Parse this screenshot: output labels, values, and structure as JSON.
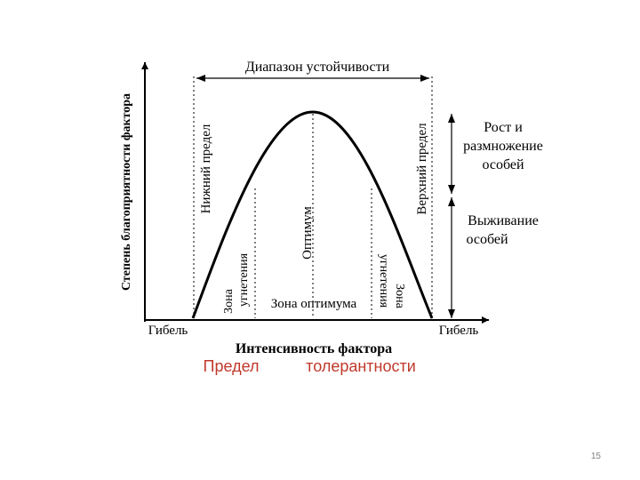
{
  "diagram": {
    "axis_y_label": "Степень благоприятности фактора",
    "axis_x_label": "Интенсивность фактора",
    "range_label": "Диапазон устойчивости",
    "death_left": "Гибель",
    "death_right": "Гибель",
    "lower_limit": "Нижний предел",
    "upper_limit": "Верхний предел",
    "optimum": "Оптимум",
    "zone_optimum": "Зона оптимума",
    "zone_left_line1": "Зона",
    "zone_left_line2": "угнетения",
    "zone_right_line1": "Зона",
    "zone_right_line2": "угнетения",
    "growth_line1": "Рост и",
    "growth_line2": "размножение",
    "growth_line3": "особей",
    "survival_line1": "Выживание",
    "survival_line2": "особей"
  },
  "caption": {
    "word1": "Предел",
    "word2": "толерантности",
    "color": "#c0392b"
  },
  "page_number": "15"
}
